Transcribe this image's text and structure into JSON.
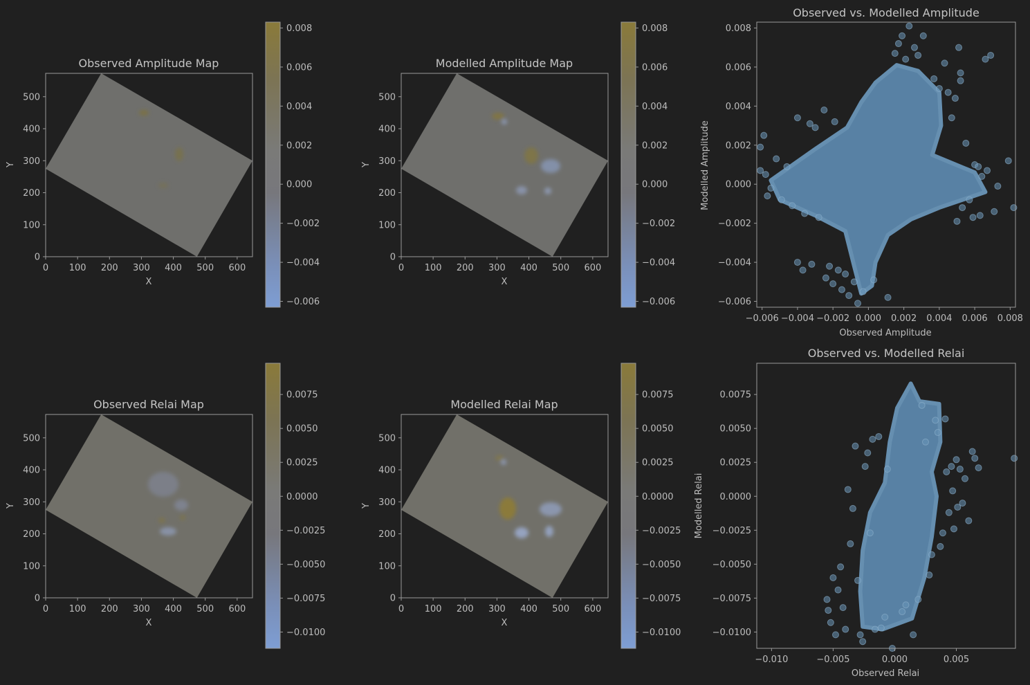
{
  "colors": {
    "background": "#202020",
    "map_fill": "#6f6f6c",
    "scatter_point": "#6a95b8",
    "colormap_low": "#7d9bd0",
    "colormap_mid": "#7a7a7a",
    "colormap_high": "#8a7a3a"
  },
  "chart_data": [
    {
      "type": "heatmap",
      "title": "Observed Amplitude Map",
      "xlabel": "X",
      "ylabel": "Y",
      "xlim": [
        0,
        648
      ],
      "ylim": [
        0,
        573
      ],
      "xticks": [
        "0",
        "100",
        "200",
        "300",
        "400",
        "500",
        "600"
      ],
      "yticks": [
        "0",
        "100",
        "200",
        "300",
        "400",
        "500"
      ],
      "footprint": [
        [
          0,
          275
        ],
        [
          174,
          573
        ],
        [
          648,
          300
        ],
        [
          474,
          0
        ]
      ],
      "colorbar": {
        "range": [
          -0.0063,
          0.0083
        ],
        "ticks": [
          "−0.006",
          "−0.004",
          "−0.002",
          "0.000",
          "0.002",
          "0.004",
          "0.006",
          "0.008"
        ]
      }
    },
    {
      "type": "heatmap",
      "title": "Modelled Amplitude Map",
      "xlabel": "X",
      "ylabel": "Y",
      "xlim": [
        0,
        648
      ],
      "ylim": [
        0,
        573
      ],
      "xticks": [
        "0",
        "100",
        "200",
        "300",
        "400",
        "500",
        "600"
      ],
      "yticks": [
        "0",
        "100",
        "200",
        "300",
        "400",
        "500"
      ],
      "footprint": [
        [
          0,
          275
        ],
        [
          174,
          573
        ],
        [
          648,
          300
        ],
        [
          474,
          0
        ]
      ],
      "colorbar": {
        "range": [
          -0.0063,
          0.0083
        ],
        "ticks": [
          "−0.006",
          "−0.004",
          "−0.002",
          "0.000",
          "0.002",
          "0.004",
          "0.006",
          "0.008"
        ]
      }
    },
    {
      "type": "scatter",
      "title": "Observed vs. Modelled Amplitude",
      "xlabel": "Observed Amplitude",
      "ylabel": "Modelled Amplitude",
      "xlim": [
        -0.0063,
        0.0083
      ],
      "ylim": [
        -0.0063,
        0.0083
      ],
      "xticks": [
        -0.006,
        -0.004,
        -0.002,
        0.0,
        0.002,
        0.004,
        0.006,
        0.008
      ],
      "xtick_labels": [
        "−0.006",
        "−0.004",
        "−0.002",
        "0.000",
        "0.002",
        "0.004",
        "0.006",
        "0.008"
      ],
      "yticks": [
        -0.006,
        -0.004,
        -0.002,
        0.0,
        0.002,
        0.004,
        0.006,
        0.008
      ],
      "ytick_labels": [
        "−0.006",
        "−0.004",
        "−0.002",
        "0.000",
        "0.002",
        "0.004",
        "0.006",
        "0.008"
      ],
      "points": [
        [
          -0.0061,
          0.0019
        ],
        [
          -0.0059,
          0.0025
        ],
        [
          -0.0061,
          0.0007
        ],
        [
          -0.0058,
          0.0005
        ],
        [
          -0.0057,
          -0.0006
        ],
        [
          -0.0055,
          -0.0002
        ],
        [
          -0.0052,
          0.0013
        ],
        [
          -0.0049,
          -0.0008
        ],
        [
          -0.0046,
          0.0009
        ],
        [
          -0.0043,
          -0.0011
        ],
        [
          -0.004,
          0.0034
        ],
        [
          -0.004,
          -0.004
        ],
        [
          -0.0037,
          -0.0044
        ],
        [
          -0.0036,
          -0.0015
        ],
        [
          -0.0033,
          0.0031
        ],
        [
          -0.0032,
          -0.0041
        ],
        [
          -0.003,
          0.0029
        ],
        [
          -0.0028,
          -0.0017
        ],
        [
          -0.0025,
          0.0038
        ],
        [
          -0.0024,
          -0.0048
        ],
        [
          -0.0022,
          -0.0042
        ],
        [
          -0.002,
          -0.0051
        ],
        [
          -0.0019,
          0.0032
        ],
        [
          -0.0017,
          -0.0044
        ],
        [
          -0.0015,
          -0.0054
        ],
        [
          -0.0013,
          -0.0046
        ],
        [
          -0.0011,
          -0.0057
        ],
        [
          -0.0008,
          -0.005
        ],
        [
          -0.0006,
          -0.0061
        ],
        [
          -0.0003,
          -0.0055
        ],
        [
          0.0003,
          -0.0049
        ],
        [
          0.0011,
          -0.0058
        ],
        [
          0.0015,
          0.0067
        ],
        [
          0.0017,
          0.0072
        ],
        [
          0.0019,
          0.0076
        ],
        [
          0.0021,
          0.0064
        ],
        [
          0.0023,
          0.0081
        ],
        [
          0.0026,
          0.007
        ],
        [
          0.0028,
          0.0066
        ],
        [
          0.0031,
          0.0076
        ],
        [
          0.0037,
          0.0054
        ],
        [
          0.004,
          0.0049
        ],
        [
          0.0043,
          0.0062
        ],
        [
          0.0045,
          0.0047
        ],
        [
          0.0047,
          0.0034
        ],
        [
          0.0049,
          0.0044
        ],
        [
          0.005,
          -0.0019
        ],
        [
          0.0051,
          0.007
        ],
        [
          0.0052,
          0.0057
        ],
        [
          0.0052,
          0.0053
        ],
        [
          0.0053,
          -0.0012
        ],
        [
          0.0055,
          0.0021
        ],
        [
          0.0057,
          -0.0008
        ],
        [
          0.0059,
          -0.0017
        ],
        [
          0.006,
          0.001
        ],
        [
          0.0062,
          0.0009
        ],
        [
          0.0063,
          -0.0016
        ],
        [
          0.0064,
          0.0004
        ],
        [
          0.0066,
          0.0064
        ],
        [
          0.0067,
          0.0007
        ],
        [
          0.0069,
          0.0066
        ],
        [
          0.0071,
          -0.0014
        ],
        [
          0.0073,
          -0.0001
        ],
        [
          0.0079,
          0.0012
        ],
        [
          0.0082,
          -0.0012
        ]
      ],
      "dense_cloud": {
        "bounds": [
          [
            -0.0055,
            0.0002
          ],
          [
            -0.003,
            0.0018
          ],
          [
            -0.0012,
            0.0029
          ],
          [
            -0.0004,
            0.0042
          ],
          [
            0.0004,
            0.0052
          ],
          [
            0.0016,
            0.0061
          ],
          [
            0.0028,
            0.0058
          ],
          [
            0.004,
            0.0047
          ],
          [
            0.0041,
            0.003
          ],
          [
            0.0036,
            0.0015
          ],
          [
            0.006,
            0.0006
          ],
          [
            0.0066,
            -0.0004
          ],
          [
            0.004,
            -0.0012
          ],
          [
            0.0024,
            -0.0018
          ],
          [
            0.0011,
            -0.0026
          ],
          [
            0.0004,
            -0.004
          ],
          [
            0.0002,
            -0.0052
          ],
          [
            -0.0004,
            -0.0056
          ],
          [
            -0.0008,
            -0.0042
          ],
          [
            -0.0013,
            -0.0024
          ],
          [
            -0.003,
            -0.0016
          ],
          [
            -0.005,
            -0.0008
          ]
        ]
      }
    },
    {
      "type": "heatmap",
      "title": "Observed Relai Map",
      "xlabel": "X",
      "ylabel": "Y",
      "xlim": [
        0,
        648
      ],
      "ylim": [
        0,
        573
      ],
      "xticks": [
        "0",
        "100",
        "200",
        "300",
        "400",
        "500",
        "600"
      ],
      "yticks": [
        "0",
        "100",
        "200",
        "300",
        "400",
        "500"
      ],
      "footprint": [
        [
          0,
          275
        ],
        [
          174,
          573
        ],
        [
          648,
          300
        ],
        [
          474,
          0
        ]
      ],
      "colorbar": {
        "range": [
          -0.0112,
          0.0098
        ],
        "ticks": [
          "−0.0100",
          "−0.0075",
          "−0.0050",
          "−0.0025",
          "0.0000",
          "0.0025",
          "0.0050",
          "0.0075"
        ]
      }
    },
    {
      "type": "heatmap",
      "title": "Modelled Relai Map",
      "xlabel": "X",
      "ylabel": "Y",
      "xlim": [
        0,
        648
      ],
      "ylim": [
        0,
        573
      ],
      "xticks": [
        "0",
        "100",
        "200",
        "300",
        "400",
        "500",
        "600"
      ],
      "yticks": [
        "0",
        "100",
        "200",
        "300",
        "400",
        "500"
      ],
      "footprint": [
        [
          0,
          275
        ],
        [
          174,
          573
        ],
        [
          648,
          300
        ],
        [
          474,
          0
        ]
      ],
      "colorbar": {
        "range": [
          -0.0112,
          0.0098
        ],
        "ticks": [
          "−0.0100",
          "−0.0075",
          "−0.0050",
          "−0.0025",
          "0.0000",
          "0.0025",
          "0.0050",
          "0.0075"
        ]
      }
    },
    {
      "type": "scatter",
      "title": "Observed vs. Modelled Relai",
      "xlabel": "Observed Relai",
      "ylabel": "Modelled Relai",
      "xlim": [
        -0.0112,
        0.0098
      ],
      "ylim": [
        -0.0112,
        0.0098
      ],
      "xticks": [
        -0.01,
        -0.005,
        0.0,
        0.005
      ],
      "xtick_labels": [
        "−0.010",
        "−0.005",
        "0.000",
        "0.005"
      ],
      "yticks": [
        -0.01,
        -0.0075,
        -0.005,
        -0.0025,
        0.0,
        0.0025,
        0.005,
        0.0075
      ],
      "ytick_labels": [
        "−0.0100",
        "−0.0075",
        "−0.0050",
        "−0.0025",
        "0.0000",
        "0.0025",
        "0.0050",
        "0.0075"
      ],
      "points": [
        [
          -0.0055,
          -0.0076
        ],
        [
          -0.0054,
          -0.0084
        ],
        [
          -0.0052,
          -0.0093
        ],
        [
          -0.005,
          -0.006
        ],
        [
          -0.0048,
          -0.0102
        ],
        [
          -0.0046,
          -0.0069
        ],
        [
          -0.0044,
          -0.0052
        ],
        [
          -0.0042,
          -0.0082
        ],
        [
          -0.004,
          -0.0098
        ],
        [
          -0.0038,
          0.0005
        ],
        [
          -0.0036,
          -0.0035
        ],
        [
          -0.0034,
          -0.0009
        ],
        [
          -0.0032,
          0.0037
        ],
        [
          -0.003,
          -0.0062
        ],
        [
          -0.0028,
          -0.0102
        ],
        [
          -0.0026,
          -0.0107
        ],
        [
          -0.0024,
          0.0022
        ],
        [
          -0.0022,
          0.0032
        ],
        [
          -0.002,
          -0.0027
        ],
        [
          -0.0018,
          0.0042
        ],
        [
          -0.0016,
          -0.0098
        ],
        [
          -0.0013,
          0.0044
        ],
        [
          -0.0011,
          -0.0097
        ],
        [
          -0.0008,
          -0.0089
        ],
        [
          -0.0006,
          0.002
        ],
        [
          -0.0002,
          -0.0112
        ],
        [
          0.0006,
          -0.0085
        ],
        [
          0.0009,
          -0.008
        ],
        [
          0.0015,
          -0.0102
        ],
        [
          0.0019,
          -0.0076
        ],
        [
          0.0022,
          0.0067
        ],
        [
          0.0025,
          0.004
        ],
        [
          0.0028,
          -0.0058
        ],
        [
          0.003,
          -0.0043
        ],
        [
          0.0033,
          0.0056
        ],
        [
          0.0035,
          0.0047
        ],
        [
          0.0037,
          -0.0037
        ],
        [
          0.0039,
          -0.0027
        ],
        [
          0.0041,
          0.0057
        ],
        [
          0.0042,
          0.0018
        ],
        [
          0.0044,
          -0.0012
        ],
        [
          0.0046,
          0.0022
        ],
        [
          0.0047,
          0.0004
        ],
        [
          0.0048,
          -0.0024
        ],
        [
          0.005,
          0.0027
        ],
        [
          0.0051,
          -0.0008
        ],
        [
          0.0053,
          0.002
        ],
        [
          0.0055,
          -0.0005
        ],
        [
          0.0057,
          0.0013
        ],
        [
          0.006,
          -0.0018
        ],
        [
          0.0063,
          0.0033
        ],
        [
          0.0065,
          0.0028
        ],
        [
          0.0068,
          0.0021
        ],
        [
          0.0097,
          0.0028
        ]
      ],
      "dense_cloud": {
        "bounds": [
          [
            0.0013,
            0.0083
          ],
          [
            0.002,
            0.007
          ],
          [
            0.0036,
            0.0068
          ],
          [
            0.0037,
            0.004
          ],
          [
            0.003,
            0.0018
          ],
          [
            0.0034,
            0.0
          ],
          [
            0.003,
            -0.003
          ],
          [
            0.0024,
            -0.006
          ],
          [
            0.0014,
            -0.009
          ],
          [
            -0.001,
            -0.0098
          ],
          [
            -0.0026,
            -0.0096
          ],
          [
            -0.0028,
            -0.007
          ],
          [
            -0.0026,
            -0.004
          ],
          [
            -0.002,
            -0.0012
          ],
          [
            -0.0008,
            0.001
          ],
          [
            -0.0004,
            0.004
          ],
          [
            0.0002,
            0.0065
          ]
        ]
      }
    }
  ]
}
